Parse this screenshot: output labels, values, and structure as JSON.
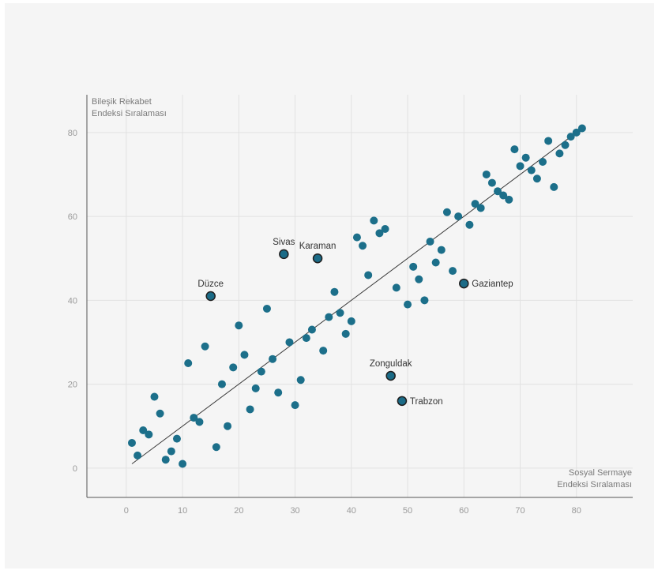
{
  "chart_data": {
    "type": "scatter",
    "ylabel_lines": [
      "Bileşik Rekabet",
      "Endeksi Sıralaması"
    ],
    "xlabel_lines": [
      "Sosyal Sermaye",
      "Endeksi Sıralaması"
    ],
    "xlim": [
      -7,
      90
    ],
    "ylim": [
      -7,
      89
    ],
    "xticks": [
      0,
      10,
      20,
      30,
      40,
      50,
      60,
      70,
      80
    ],
    "yticks": [
      0,
      20,
      40,
      60,
      80
    ],
    "grid": true,
    "colors": {
      "point": "#1c6f8a",
      "highlight": "#1b6b87",
      "line": "#3a3a3a",
      "grid": "#e2e2e2",
      "axis": "#555555"
    },
    "trendline": {
      "from": [
        1,
        1
      ],
      "to": [
        80,
        80
      ]
    },
    "points": [
      {
        "x": 1,
        "y": 6
      },
      {
        "x": 2,
        "y": 3
      },
      {
        "x": 3,
        "y": 9
      },
      {
        "x": 4,
        "y": 8
      },
      {
        "x": 5,
        "y": 17
      },
      {
        "x": 6,
        "y": 13
      },
      {
        "x": 7,
        "y": 2
      },
      {
        "x": 8,
        "y": 4
      },
      {
        "x": 9,
        "y": 7
      },
      {
        "x": 10,
        "y": 1
      },
      {
        "x": 11,
        "y": 25
      },
      {
        "x": 12,
        "y": 12
      },
      {
        "x": 13,
        "y": 11
      },
      {
        "x": 14,
        "y": 29
      },
      {
        "x": 16,
        "y": 5
      },
      {
        "x": 17,
        "y": 20
      },
      {
        "x": 18,
        "y": 10
      },
      {
        "x": 19,
        "y": 24
      },
      {
        "x": 20,
        "y": 34
      },
      {
        "x": 21,
        "y": 27
      },
      {
        "x": 22,
        "y": 14
      },
      {
        "x": 23,
        "y": 19
      },
      {
        "x": 24,
        "y": 23
      },
      {
        "x": 25,
        "y": 38
      },
      {
        "x": 26,
        "y": 26
      },
      {
        "x": 27,
        "y": 18
      },
      {
        "x": 29,
        "y": 30
      },
      {
        "x": 30,
        "y": 15
      },
      {
        "x": 31,
        "y": 21
      },
      {
        "x": 32,
        "y": 31
      },
      {
        "x": 33,
        "y": 33
      },
      {
        "x": 35,
        "y": 28
      },
      {
        "x": 36,
        "y": 36
      },
      {
        "x": 37,
        "y": 42
      },
      {
        "x": 38,
        "y": 37
      },
      {
        "x": 39,
        "y": 32
      },
      {
        "x": 40,
        "y": 35
      },
      {
        "x": 41,
        "y": 55
      },
      {
        "x": 42,
        "y": 53
      },
      {
        "x": 43,
        "y": 46
      },
      {
        "x": 44,
        "y": 59
      },
      {
        "x": 45,
        "y": 56
      },
      {
        "x": 46,
        "y": 57
      },
      {
        "x": 48,
        "y": 43
      },
      {
        "x": 50,
        "y": 39
      },
      {
        "x": 51,
        "y": 48
      },
      {
        "x": 52,
        "y": 45
      },
      {
        "x": 53,
        "y": 40
      },
      {
        "x": 54,
        "y": 54
      },
      {
        "x": 55,
        "y": 49
      },
      {
        "x": 56,
        "y": 52
      },
      {
        "x": 57,
        "y": 61
      },
      {
        "x": 58,
        "y": 47
      },
      {
        "x": 59,
        "y": 60
      },
      {
        "x": 61,
        "y": 58
      },
      {
        "x": 62,
        "y": 63
      },
      {
        "x": 63,
        "y": 62
      },
      {
        "x": 64,
        "y": 70
      },
      {
        "x": 65,
        "y": 68
      },
      {
        "x": 66,
        "y": 66
      },
      {
        "x": 67,
        "y": 65
      },
      {
        "x": 68,
        "y": 64
      },
      {
        "x": 69,
        "y": 76
      },
      {
        "x": 70,
        "y": 72
      },
      {
        "x": 71,
        "y": 74
      },
      {
        "x": 72,
        "y": 71
      },
      {
        "x": 73,
        "y": 69
      },
      {
        "x": 74,
        "y": 73
      },
      {
        "x": 75,
        "y": 78
      },
      {
        "x": 76,
        "y": 67
      },
      {
        "x": 77,
        "y": 75
      },
      {
        "x": 78,
        "y": 77
      },
      {
        "x": 79,
        "y": 79
      },
      {
        "x": 80,
        "y": 80
      },
      {
        "x": 81,
        "y": 81
      }
    ],
    "highlighted": [
      {
        "label": "Düzce",
        "x": 15,
        "y": 41,
        "label_pos": "above"
      },
      {
        "label": "Sivas",
        "x": 28,
        "y": 51,
        "label_pos": "above"
      },
      {
        "label": "Karaman",
        "x": 34,
        "y": 50,
        "label_pos": "above"
      },
      {
        "label": "Gaziantep",
        "x": 60,
        "y": 44,
        "label_pos": "right"
      },
      {
        "label": "Zonguldak",
        "x": 47,
        "y": 22,
        "label_pos": "above"
      },
      {
        "label": "Trabzon",
        "x": 49,
        "y": 16,
        "label_pos": "right"
      }
    ]
  }
}
